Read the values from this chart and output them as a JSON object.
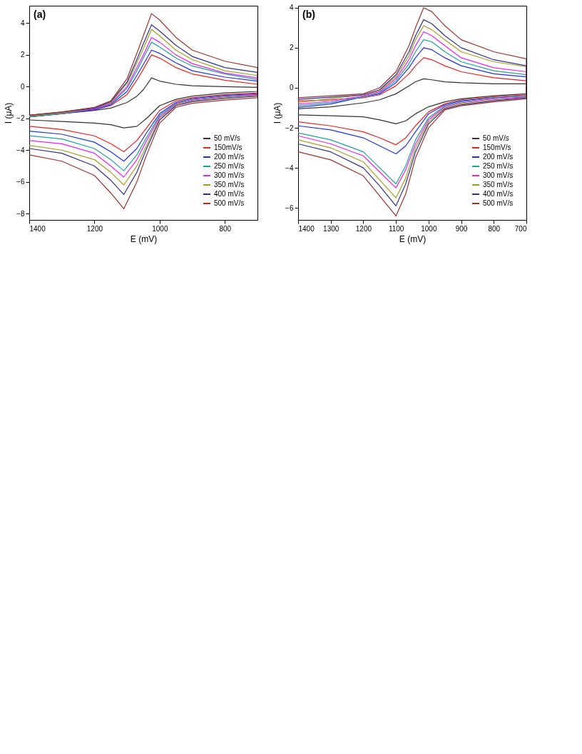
{
  "chart_data": [
    {
      "type": "line",
      "annotations": [
        "(a)"
      ],
      "xlabel": "E (mV)",
      "ylabel": "I (μA)",
      "xlim": [
        1400,
        700
      ],
      "xticks": [
        1400,
        1200,
        1000,
        800
      ],
      "ylim": [
        -8.4,
        5.1
      ],
      "yticks": [
        4,
        2,
        0,
        -2,
        -4,
        -6,
        -8
      ],
      "grid": false,
      "legend": "bottom right",
      "marker": "none",
      "line_style": "solid",
      "series": [
        {
          "name": "50 mV/s",
          "color": "#333333",
          "x": [
            1400,
            1300,
            1200,
            1150,
            1100,
            1070,
            1050,
            1025,
            1000,
            950,
            900,
            800,
            700,
            700,
            800,
            900,
            950,
            1000,
            1040,
            1070,
            1110,
            1150,
            1200,
            1300,
            1400
          ],
          "values": [
            -1.9,
            -1.7,
            -1.5,
            -1.35,
            -1.0,
            -0.6,
            -0.2,
            0.55,
            0.35,
            0.15,
            0.05,
            0.0,
            -0.05,
            -0.3,
            -0.4,
            -0.6,
            -0.8,
            -1.2,
            -2.0,
            -2.5,
            -2.6,
            -2.4,
            -2.3,
            -2.2,
            -2.1
          ]
        },
        {
          "name": "150mV/s",
          "color": "#f02020",
          "x": [
            1400,
            1300,
            1200,
            1150,
            1100,
            1070,
            1050,
            1025,
            1000,
            950,
            900,
            800,
            700,
            700,
            800,
            900,
            950,
            1000,
            1040,
            1070,
            1110,
            1150,
            1200,
            1300,
            1400
          ],
          "values": [
            -1.9,
            -1.7,
            -1.45,
            -1.2,
            -0.5,
            0.4,
            1.1,
            2.0,
            1.8,
            1.2,
            0.8,
            0.4,
            0.15,
            -0.4,
            -0.5,
            -0.7,
            -0.9,
            -1.5,
            -2.6,
            -3.4,
            -4.1,
            -3.6,
            -3.1,
            -2.7,
            -2.5
          ]
        },
        {
          "name": "200 mV/s",
          "color": "#2030f0",
          "x": [
            1400,
            1300,
            1200,
            1150,
            1100,
            1070,
            1050,
            1025,
            1000,
            950,
            900,
            800,
            700,
            700,
            800,
            900,
            950,
            1000,
            1040,
            1070,
            1110,
            1150,
            1200,
            1300,
            1400
          ],
          "values": [
            -1.9,
            -1.7,
            -1.45,
            -1.15,
            -0.3,
            0.7,
            1.4,
            2.3,
            2.1,
            1.5,
            1.0,
            0.6,
            0.35,
            -0.45,
            -0.55,
            -0.75,
            -1.0,
            -1.7,
            -2.9,
            -3.9,
            -4.7,
            -4.1,
            -3.5,
            -3.0,
            -2.8
          ]
        },
        {
          "name": "250 mV/s",
          "color": "#20a0a0",
          "x": [
            1400,
            1300,
            1200,
            1150,
            1100,
            1070,
            1050,
            1025,
            1000,
            950,
            900,
            800,
            700,
            700,
            800,
            900,
            950,
            1000,
            1040,
            1070,
            1110,
            1150,
            1200,
            1300,
            1400
          ],
          "values": [
            -1.9,
            -1.7,
            -1.4,
            -1.1,
            -0.1,
            1.0,
            1.8,
            2.8,
            2.5,
            1.8,
            1.3,
            0.8,
            0.45,
            -0.5,
            -0.6,
            -0.8,
            -1.05,
            -1.8,
            -3.2,
            -4.3,
            -5.3,
            -4.6,
            -3.9,
            -3.3,
            -3.1
          ]
        },
        {
          "name": "300 mV/s",
          "color": "#f020f0",
          "x": [
            1400,
            1300,
            1200,
            1150,
            1100,
            1070,
            1050,
            1025,
            1000,
            950,
            900,
            800,
            700,
            700,
            800,
            900,
            950,
            1000,
            1040,
            1070,
            1110,
            1150,
            1200,
            1300,
            1400
          ],
          "values": [
            -1.85,
            -1.65,
            -1.4,
            -1.05,
            0.0,
            1.2,
            2.0,
            3.1,
            2.8,
            2.0,
            1.45,
            0.85,
            0.55,
            -0.5,
            -0.65,
            -0.85,
            -1.1,
            -1.9,
            -3.4,
            -4.6,
            -5.7,
            -5.0,
            -4.2,
            -3.6,
            -3.4
          ]
        },
        {
          "name": "350 mV/s",
          "color": "#a0a020",
          "x": [
            1400,
            1300,
            1200,
            1150,
            1100,
            1070,
            1050,
            1025,
            1000,
            950,
            900,
            800,
            700,
            700,
            800,
            900,
            950,
            1000,
            1040,
            1070,
            1110,
            1150,
            1200,
            1300,
            1400
          ],
          "values": [
            -1.85,
            -1.65,
            -1.35,
            -1.0,
            0.2,
            1.5,
            2.4,
            3.6,
            3.2,
            2.3,
            1.7,
            1.0,
            0.7,
            -0.55,
            -0.7,
            -0.9,
            -1.15,
            -2.0,
            -3.7,
            -5.0,
            -6.2,
            -5.4,
            -4.6,
            -4.0,
            -3.7
          ]
        },
        {
          "name": "400 mV/s",
          "color": "#303090",
          "x": [
            1400,
            1300,
            1200,
            1150,
            1100,
            1070,
            1050,
            1025,
            1000,
            950,
            900,
            800,
            700,
            700,
            800,
            900,
            950,
            1000,
            1040,
            1070,
            1110,
            1150,
            1200,
            1300,
            1400
          ],
          "values": [
            -1.8,
            -1.6,
            -1.35,
            -0.95,
            0.3,
            1.7,
            2.7,
            3.9,
            3.5,
            2.6,
            1.9,
            1.2,
            0.9,
            -0.6,
            -0.75,
            -0.95,
            -1.2,
            -2.1,
            -3.9,
            -5.4,
            -6.8,
            -5.9,
            -5.0,
            -4.2,
            -3.9
          ]
        },
        {
          "name": "500 mV/s",
          "color": "#a03030",
          "x": [
            1400,
            1300,
            1200,
            1150,
            1100,
            1070,
            1050,
            1025,
            1000,
            950,
            900,
            800,
            700,
            700,
            800,
            900,
            950,
            1000,
            1040,
            1070,
            1110,
            1150,
            1200,
            1300,
            1400
          ],
          "values": [
            -1.8,
            -1.6,
            -1.3,
            -0.9,
            0.5,
            2.1,
            3.2,
            4.6,
            4.2,
            3.1,
            2.3,
            1.6,
            1.2,
            -0.7,
            -0.85,
            -1.05,
            -1.3,
            -2.3,
            -4.3,
            -6.0,
            -7.7,
            -6.7,
            -5.6,
            -4.7,
            -4.3
          ]
        }
      ]
    },
    {
      "type": "line",
      "annotations": [
        "(b)"
      ],
      "xlabel": "E (mV)",
      "ylabel": "I (μA)",
      "xlim": [
        1400,
        700
      ],
      "xticks": [
        1400,
        1300,
        1200,
        1100,
        1000,
        900,
        800,
        700
      ],
      "ylim": [
        -6.6,
        4.1
      ],
      "yticks": [
        4,
        2,
        0,
        -2,
        -4,
        -6
      ],
      "grid": false,
      "legend": "bottom right",
      "marker": "none",
      "line_style": "solid",
      "series": [
        {
          "name": "50 mV/s",
          "color": "#333333",
          "x": [
            1400,
            1300,
            1200,
            1150,
            1100,
            1060,
            1040,
            1015,
            990,
            950,
            900,
            800,
            700,
            700,
            800,
            900,
            950,
            1000,
            1040,
            1070,
            1100,
            1150,
            1200,
            1300,
            1400
          ],
          "values": [
            -1.05,
            -0.95,
            -0.75,
            -0.6,
            -0.3,
            0.1,
            0.3,
            0.45,
            0.4,
            0.3,
            0.25,
            0.2,
            0.2,
            -0.3,
            -0.4,
            -0.55,
            -0.7,
            -0.95,
            -1.3,
            -1.65,
            -1.8,
            -1.6,
            -1.45,
            -1.4,
            -1.35
          ]
        },
        {
          "name": "150mV/s",
          "color": "#f02020",
          "x": [
            1400,
            1300,
            1200,
            1150,
            1100,
            1060,
            1040,
            1015,
            990,
            950,
            900,
            800,
            700,
            700,
            800,
            900,
            950,
            1000,
            1040,
            1070,
            1100,
            1150,
            1200,
            1300,
            1400
          ],
          "values": [
            -0.66,
            -0.6,
            -0.5,
            -0.35,
            0.1,
            0.7,
            1.1,
            1.5,
            1.4,
            1.1,
            0.8,
            0.5,
            0.35,
            -0.35,
            -0.45,
            -0.6,
            -0.8,
            -1.2,
            -1.9,
            -2.5,
            -2.85,
            -2.5,
            -2.2,
            -1.9,
            -1.7
          ]
        },
        {
          "name": "200 mV/s",
          "color": "#2030f0",
          "x": [
            1400,
            1300,
            1200,
            1150,
            1100,
            1060,
            1040,
            1015,
            990,
            950,
            900,
            800,
            700,
            700,
            800,
            900,
            950,
            1000,
            1040,
            1070,
            1100,
            1150,
            1200,
            1300,
            1400
          ],
          "values": [
            -0.98,
            -0.81,
            -0.45,
            -0.3,
            0.25,
            1.0,
            1.5,
            2.0,
            1.9,
            1.5,
            1.1,
            0.7,
            0.55,
            -0.4,
            -0.5,
            -0.65,
            -0.85,
            -1.3,
            -2.2,
            -2.9,
            -3.3,
            -2.9,
            -2.5,
            -2.1,
            -1.9
          ]
        },
        {
          "name": "250 mV/s",
          "color": "#20a0a0",
          "x": [
            1400,
            1300,
            1200,
            1150,
            1100,
            1060,
            1040,
            1015,
            990,
            950,
            900,
            800,
            700,
            700,
            800,
            900,
            950,
            1000,
            1040,
            1070,
            1100,
            1150,
            1200,
            1300,
            1400
          ],
          "values": [
            -0.9,
            -0.74,
            -0.45,
            -0.25,
            0.35,
            1.2,
            1.8,
            2.4,
            2.3,
            1.8,
            1.3,
            0.85,
            0.65,
            -0.4,
            -0.5,
            -0.7,
            -0.9,
            -1.5,
            -2.6,
            -3.9,
            -4.8,
            -4.0,
            -3.2,
            -2.6,
            -2.25
          ]
        },
        {
          "name": "300 mV/s",
          "color": "#f020f0",
          "x": [
            1400,
            1300,
            1200,
            1150,
            1100,
            1060,
            1040,
            1015,
            990,
            950,
            900,
            800,
            700,
            700,
            800,
            900,
            950,
            1000,
            1040,
            1070,
            1100,
            1150,
            1200,
            1300,
            1400
          ],
          "values": [
            -0.82,
            -0.67,
            -0.4,
            -0.2,
            0.45,
            1.4,
            2.1,
            2.8,
            2.6,
            2.1,
            1.5,
            1.0,
            0.8,
            -0.45,
            -0.55,
            -0.75,
            -0.95,
            -1.6,
            -2.8,
            -4.1,
            -5.0,
            -4.2,
            -3.4,
            -2.8,
            -2.4
          ]
        },
        {
          "name": "350 mV/s",
          "color": "#a0a020",
          "x": [
            1400,
            1300,
            1200,
            1150,
            1100,
            1060,
            1040,
            1015,
            990,
            950,
            900,
            800,
            700,
            700,
            800,
            900,
            950,
            1000,
            1040,
            1070,
            1100,
            1150,
            1200,
            1300,
            1400
          ],
          "values": [
            -0.74,
            -0.54,
            -0.35,
            -0.15,
            0.55,
            1.6,
            2.4,
            3.1,
            2.9,
            2.4,
            1.8,
            1.3,
            1.05,
            -0.5,
            -0.6,
            -0.8,
            -1.0,
            -1.7,
            -3.0,
            -4.5,
            -5.5,
            -4.6,
            -3.7,
            -3.0,
            -2.6
          ]
        },
        {
          "name": "400 mV/s",
          "color": "#303090",
          "x": [
            1400,
            1300,
            1200,
            1150,
            1100,
            1060,
            1040,
            1015,
            990,
            950,
            900,
            800,
            700,
            700,
            800,
            900,
            950,
            1000,
            1040,
            1070,
            1100,
            1150,
            1200,
            1300,
            1400
          ],
          "values": [
            -0.58,
            -0.47,
            -0.35,
            -0.1,
            0.65,
            1.8,
            2.6,
            3.4,
            3.2,
            2.6,
            2.0,
            1.4,
            1.1,
            -0.5,
            -0.65,
            -0.85,
            -1.05,
            -1.8,
            -3.2,
            -4.8,
            -5.9,
            -4.9,
            -4.0,
            -3.2,
            -2.8
          ]
        },
        {
          "name": "500 mV/s",
          "color": "#a03030",
          "x": [
            1400,
            1300,
            1200,
            1150,
            1100,
            1060,
            1040,
            1015,
            990,
            950,
            900,
            800,
            700,
            700,
            800,
            900,
            950,
            1000,
            1040,
            1070,
            1100,
            1150,
            1200,
            1300,
            1400
          ],
          "values": [
            -0.5,
            -0.4,
            -0.3,
            0.0,
            0.8,
            2.1,
            3.0,
            4.0,
            3.8,
            3.1,
            2.4,
            1.8,
            1.45,
            -0.55,
            -0.7,
            -0.9,
            -1.1,
            -2.0,
            -3.5,
            -5.3,
            -6.4,
            -5.4,
            -4.4,
            -3.6,
            -3.2
          ]
        }
      ]
    }
  ]
}
